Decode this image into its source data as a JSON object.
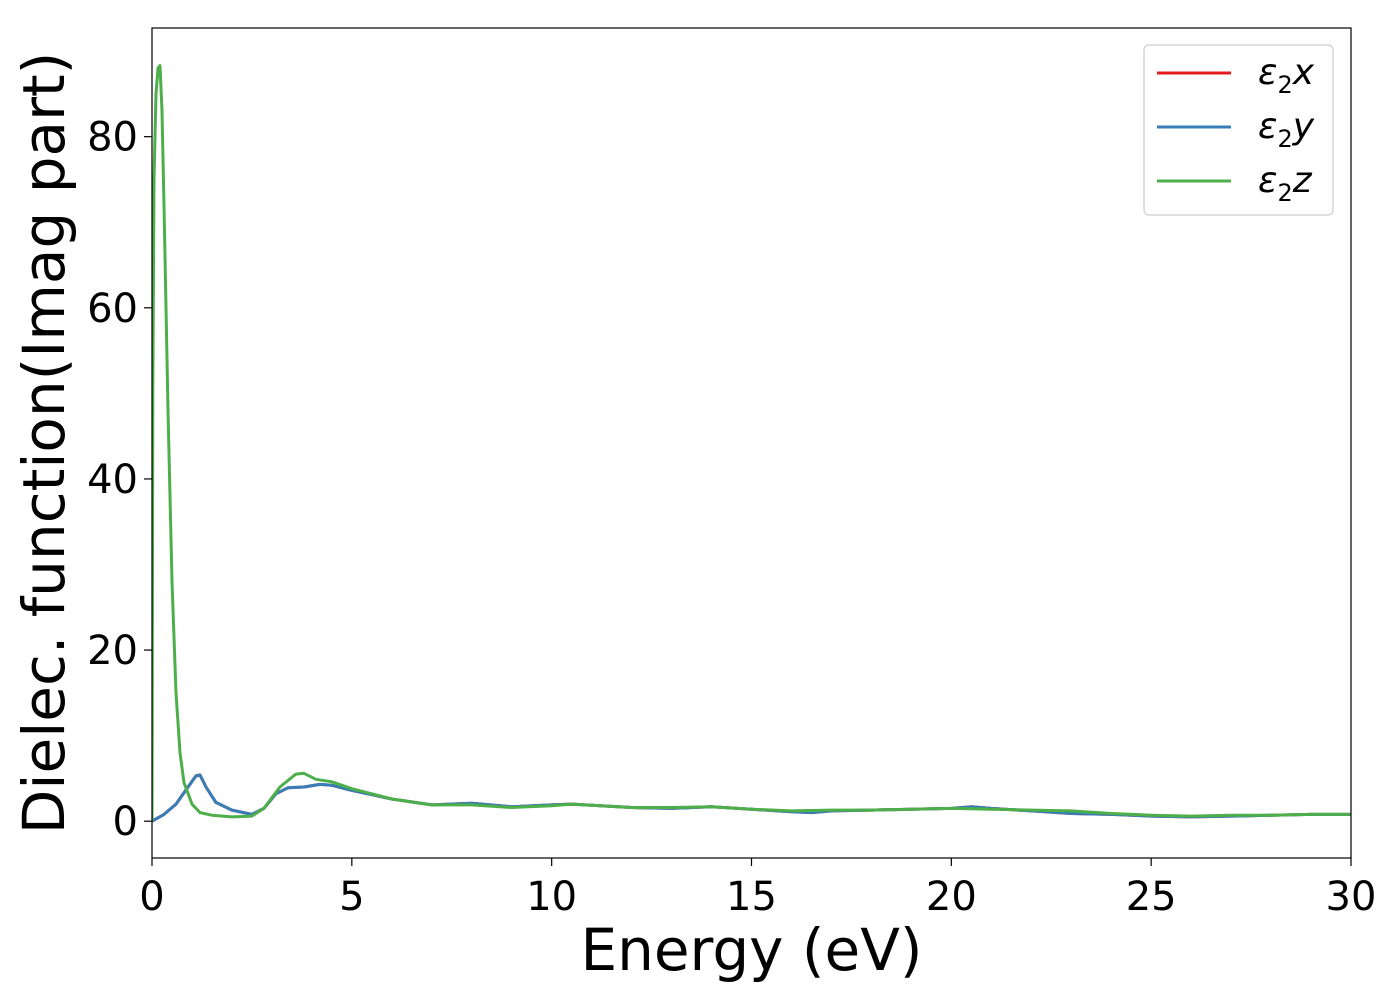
{
  "chart_data": {
    "type": "line",
    "title": "",
    "xlabel": "Energy (eV)",
    "ylabel": "Dielec. function(Imag part)",
    "xlim": [
      0,
      30
    ],
    "ylim": [
      -4.3,
      92.7
    ],
    "xticks": [
      0,
      5,
      10,
      15,
      20,
      25,
      30
    ],
    "yticks": [
      0,
      20,
      40,
      60,
      80
    ],
    "grid": false,
    "legend_position": "top-right",
    "series": [
      {
        "name": "ε2x",
        "legend": {
          "base": "ε",
          "sub": "2",
          "suffix": "x"
        },
        "color": "#e41a1c",
        "x": [
          0,
          0.3,
          0.6,
          0.9,
          1.1,
          1.2,
          1.35,
          1.6,
          2.0,
          2.5,
          2.8,
          3.1,
          3.4,
          3.8,
          4.2,
          4.5,
          5.0,
          6.0,
          7.0,
          8.0,
          9.0,
          10.0,
          10.5,
          12.0,
          13.0,
          14.0,
          15.0,
          16.0,
          16.5,
          17.0,
          18.0,
          19.0,
          20.0,
          20.5,
          21.0,
          22.0,
          23.0,
          24.0,
          25.0,
          26.0,
          27.0,
          28.0,
          29.0,
          30.0
        ],
        "y": [
          0,
          0.8,
          2.0,
          4.0,
          5.3,
          5.4,
          4.0,
          2.2,
          1.3,
          0.8,
          1.5,
          3.2,
          3.9,
          4.0,
          4.3,
          4.2,
          3.6,
          2.6,
          1.9,
          2.1,
          1.7,
          1.9,
          2.0,
          1.6,
          1.5,
          1.7,
          1.4,
          1.1,
          1.0,
          1.2,
          1.3,
          1.4,
          1.5,
          1.7,
          1.5,
          1.2,
          0.9,
          0.8,
          0.6,
          0.5,
          0.6,
          0.7,
          0.8,
          0.8
        ]
      },
      {
        "name": "ε2y",
        "legend": {
          "base": "ε",
          "sub": "2",
          "suffix": "y"
        },
        "color": "#377eb8",
        "x": [
          0,
          0.3,
          0.6,
          0.9,
          1.1,
          1.2,
          1.35,
          1.6,
          2.0,
          2.5,
          2.8,
          3.1,
          3.4,
          3.8,
          4.2,
          4.5,
          5.0,
          6.0,
          7.0,
          8.0,
          9.0,
          10.0,
          10.5,
          12.0,
          13.0,
          14.0,
          15.0,
          16.0,
          16.5,
          17.0,
          18.0,
          19.0,
          20.0,
          20.5,
          21.0,
          22.0,
          23.0,
          24.0,
          25.0,
          26.0,
          27.0,
          28.0,
          29.0,
          30.0
        ],
        "y": [
          0,
          0.8,
          2.0,
          4.0,
          5.3,
          5.4,
          4.0,
          2.2,
          1.3,
          0.8,
          1.5,
          3.2,
          3.9,
          4.0,
          4.3,
          4.2,
          3.6,
          2.6,
          1.9,
          2.1,
          1.7,
          1.9,
          2.0,
          1.6,
          1.5,
          1.7,
          1.4,
          1.1,
          1.0,
          1.2,
          1.3,
          1.4,
          1.5,
          1.7,
          1.5,
          1.2,
          0.9,
          0.8,
          0.6,
          0.5,
          0.6,
          0.7,
          0.8,
          0.8
        ]
      },
      {
        "name": "ε2z",
        "legend": {
          "base": "ε",
          "sub": "2",
          "suffix": "z"
        },
        "color": "#4daf4a",
        "x": [
          0,
          0.02,
          0.05,
          0.1,
          0.15,
          0.2,
          0.25,
          0.3,
          0.4,
          0.5,
          0.6,
          0.7,
          0.8,
          1.0,
          1.2,
          1.5,
          2.0,
          2.5,
          2.8,
          3.2,
          3.6,
          3.8,
          4.1,
          4.5,
          5.0,
          6.0,
          7.0,
          8.0,
          9.0,
          10.0,
          10.5,
          12.0,
          13.0,
          14.0,
          15.0,
          16.0,
          17.0,
          18.0,
          19.0,
          20.0,
          21.0,
          22.0,
          23.0,
          24.0,
          25.0,
          26.0,
          27.0,
          28.0,
          29.0,
          30.0
        ],
        "y": [
          0,
          50,
          75,
          85,
          88,
          88.3,
          83,
          72,
          48,
          28,
          15,
          8,
          4.5,
          2.0,
          1.0,
          0.7,
          0.5,
          0.6,
          1.5,
          4.0,
          5.5,
          5.6,
          4.9,
          4.6,
          3.8,
          2.6,
          1.9,
          1.9,
          1.6,
          1.8,
          2.0,
          1.6,
          1.6,
          1.7,
          1.4,
          1.2,
          1.3,
          1.3,
          1.4,
          1.5,
          1.4,
          1.3,
          1.2,
          0.9,
          0.7,
          0.6,
          0.7,
          0.7,
          0.8,
          0.8
        ]
      }
    ]
  }
}
